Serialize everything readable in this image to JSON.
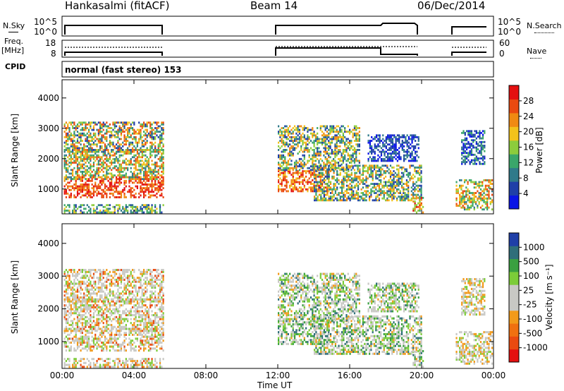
{
  "header": {
    "title": "Hankasalmi (fitACF)",
    "beam": "Beam 14",
    "date": "06/Dec/2014"
  },
  "top_panels": {
    "nsky_label": "N.Sky",
    "nsearch_label": "N.Search",
    "freq_label": "Freq.",
    "freq_unit": "[MHz]",
    "nave_label": "Nave",
    "cpid_label": "CPID",
    "cpid_text": "normal (fast stereo) 153",
    "nsky_ticks": [
      "10^5",
      "10^0"
    ],
    "nsearch_ticks": [
      "10^5",
      "10^0"
    ],
    "freq_ticks": [
      "18",
      "8"
    ],
    "nave_ticks": [
      "60",
      "0"
    ]
  },
  "colors": {
    "power_scale": [
      "#0a14e6",
      "#1f3fa8",
      "#2f7a8a",
      "#3aa66a",
      "#8ccc3c",
      "#f2c21a",
      "#f08a12",
      "#ea4a10",
      "#e41010"
    ],
    "velocity_scale": [
      "#e41010",
      "#ea4a10",
      "#f07010",
      "#f29a1a",
      "#c8c8c4",
      "#c8c8c4",
      "#7ccc38",
      "#3aa040",
      "#2f6e7a",
      "#1f3fa8"
    ]
  },
  "chart_data": [
    {
      "type": "heatmap",
      "quantity": "Power",
      "xlabel": "Time UT",
      "ylabel": "Slant Range [km]",
      "x_ticks": [
        "00:00",
        "04:00",
        "08:00",
        "12:00",
        "16:00",
        "20:00",
        "00:00"
      ],
      "x_range_hours": [
        0,
        24
      ],
      "y_ticks": [
        1000,
        2000,
        3000,
        4000
      ],
      "y_range_km": [
        180,
        4600
      ],
      "colorbar_label": "Power [dB]",
      "colorbar_ticks": [
        4,
        8,
        12,
        16,
        20,
        24,
        28
      ],
      "colorbar_range": [
        0,
        32
      ]
    },
    {
      "type": "heatmap",
      "quantity": "Velocity",
      "xlabel": "Time UT",
      "ylabel": "Slant Range [km]",
      "x_ticks": [
        "00:00",
        "04:00",
        "08:00",
        "12:00",
        "16:00",
        "20:00",
        "00:00"
      ],
      "x_range_hours": [
        0,
        24
      ],
      "y_ticks": [
        1000,
        2000,
        3000,
        4000
      ],
      "y_range_km": [
        180,
        4600
      ],
      "colorbar_label": "Velocity [m s⁻¹]",
      "colorbar_ticks": [
        "1000",
        "500",
        "100",
        "25",
        "-25",
        "-100",
        "-500",
        "-1000"
      ]
    }
  ]
}
